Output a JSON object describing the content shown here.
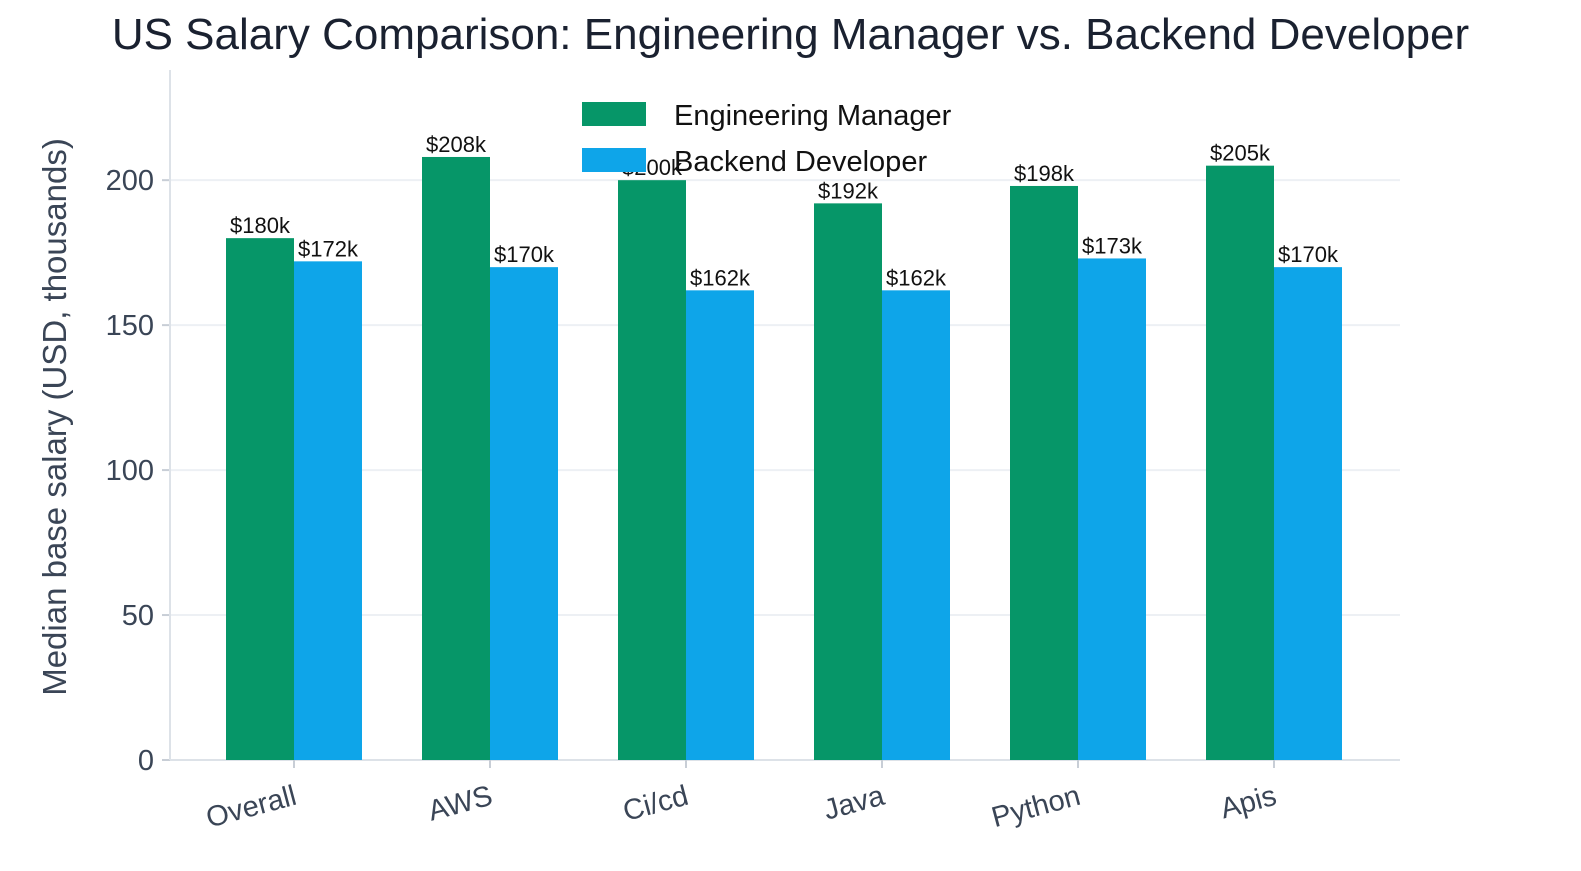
{
  "chart_data": {
    "type": "bar",
    "title": "US Salary Comparison: Engineering Manager vs. Backend Developer",
    "xlabel": "",
    "ylabel": "Median base salary (USD, thousands)",
    "categories": [
      "Overall",
      "AWS",
      "Ci/cd",
      "Java",
      "Python",
      "Apis"
    ],
    "series": [
      {
        "name": "Engineering Manager",
        "color": "#069668",
        "values": [
          180,
          208,
          200,
          192,
          198,
          205
        ],
        "labels": [
          "$180k",
          "$208k",
          "$200k",
          "$192k",
          "$198k",
          "$205k"
        ]
      },
      {
        "name": "Backend Developer",
        "color": "#0ea5e9",
        "values": [
          172,
          170,
          162,
          162,
          173,
          170
        ],
        "labels": [
          "$172k",
          "$170k",
          "$162k",
          "$162k",
          "$173k",
          "$170k"
        ]
      }
    ],
    "ylim": [
      0,
      238
    ],
    "yticks": [
      0,
      50,
      100,
      150,
      200
    ],
    "grid": "horizontal",
    "legend_position": "top-center"
  }
}
